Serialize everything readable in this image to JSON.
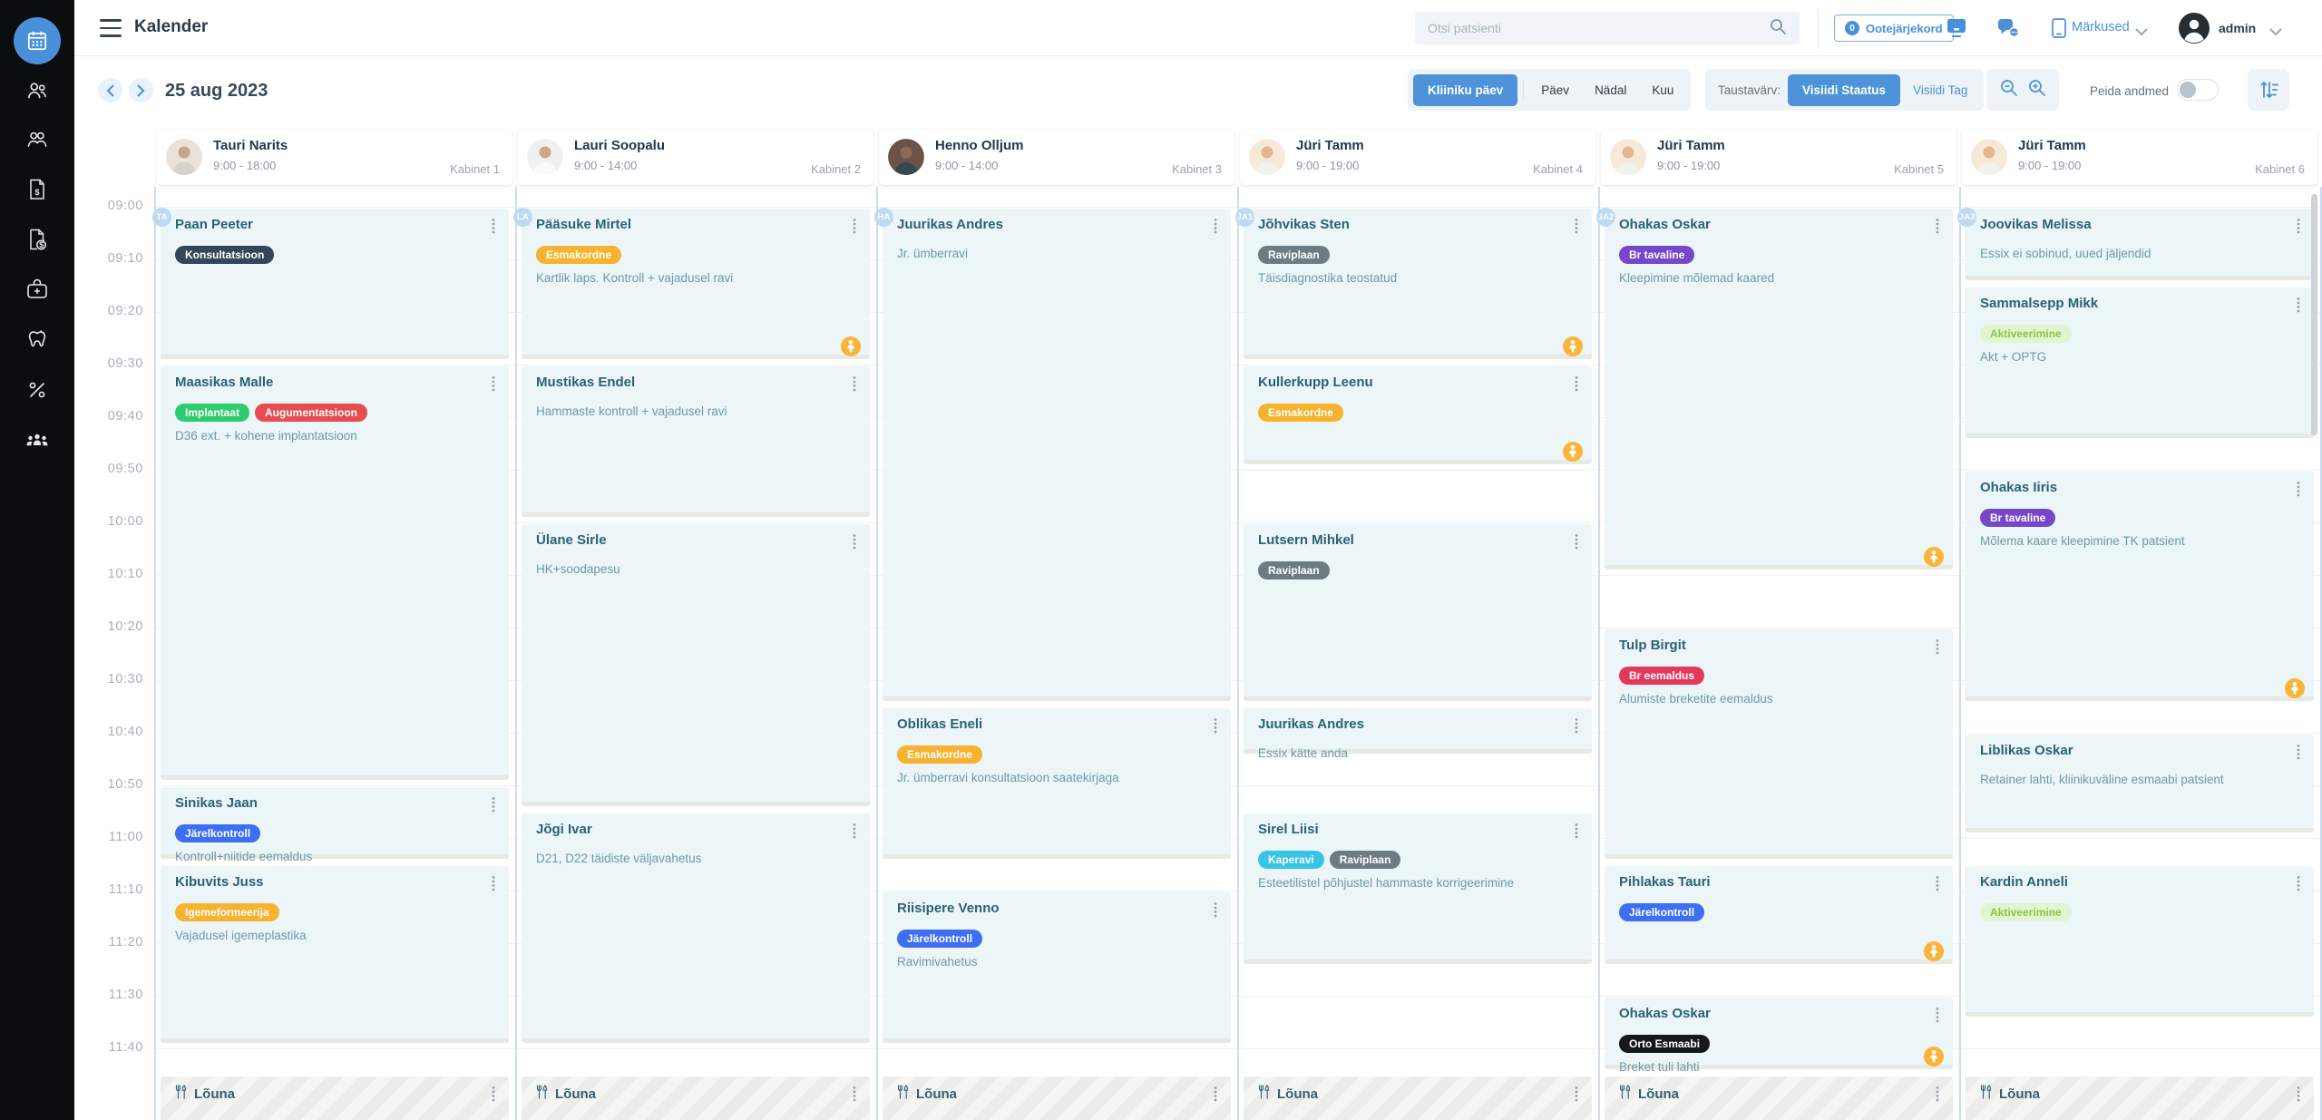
{
  "header": {
    "title": "Kalender",
    "search_placeholder": "Otsi patsienti",
    "queue_count": "0",
    "queue_label": "Ootejärjekord",
    "notes_label": "Märkused",
    "user": "admin"
  },
  "toolbar": {
    "date": "25 aug 2023",
    "views": [
      "Kliiniku päev",
      "Päev",
      "Nädal",
      "Kuu"
    ],
    "active_view": "Kliiniku päev",
    "background_label": "Taustavärv:",
    "background_options": [
      "Visiidi Staatus",
      "Visiidi Tag"
    ],
    "active_background": "Visiidi Staatus",
    "hide_data_label": "Peida andmed",
    "hide_data_on": false
  },
  "sidebar": {
    "items": [
      {
        "icon": "calendar",
        "active": true
      },
      {
        "icon": "patients",
        "active": false
      },
      {
        "icon": "contacts",
        "active": false
      },
      {
        "icon": "invoice",
        "active": false
      },
      {
        "icon": "billing",
        "active": false
      },
      {
        "icon": "medkit",
        "active": false
      },
      {
        "icon": "dental",
        "active": false
      },
      {
        "icon": "discount",
        "active": false
      },
      {
        "icon": "team",
        "active": false
      }
    ]
  },
  "calendar": {
    "times": [
      "09:00",
      "09:10",
      "09:20",
      "09:30",
      "09:40",
      "09:50",
      "10:00",
      "10:10",
      "10:20",
      "10:30",
      "10:40",
      "10:50",
      "11:00",
      "11:10",
      "11:20",
      "11:30",
      "11:40"
    ],
    "lunch": {
      "label": "Lõuna",
      "start": "11:45"
    },
    "accent_color": "#4a90d9",
    "tag_colors": {
      "Konsultatsioon": {
        "bg": "#33465a",
        "fg": "#ffffff"
      },
      "Implantaat": {
        "bg": "#2ecc71",
        "fg": "#ffffff"
      },
      "Augumentatsioon": {
        "bg": "#e74c50",
        "fg": "#ffffff"
      },
      "Järelkontroll": {
        "bg": "#3e6ef2",
        "fg": "#ffffff"
      },
      "Igemeformeerija": {
        "bg": "#f6b32f",
        "fg": "#ffffff"
      },
      "Esmakordne": {
        "bg": "#f6b32f",
        "fg": "#ffffff"
      },
      "Raviplaan": {
        "bg": "#6e7b83",
        "fg": "#ffffff"
      },
      "Kaperavi": {
        "bg": "#38c4e4",
        "fg": "#ffffff"
      },
      "Br tavaline": {
        "bg": "#7747c9",
        "fg": "#ffffff"
      },
      "Br eemaldus": {
        "bg": "#e23a5e",
        "fg": "#ffffff"
      },
      "Orto Esmaabi": {
        "bg": "#15191c",
        "fg": "#ffffff"
      },
      "Aktiveerimine": {
        "bg": "#e1f5d0",
        "fg": "#8bc34a"
      }
    },
    "columns": [
      {
        "doctor": "Tauri Narits",
        "hours": "9:00 - 18:00",
        "room": "Kabinet 1",
        "badge": "TA",
        "avatar": {
          "bg": "#e9e2d8",
          "head": "#caa287",
          "body": "#d8d3ca"
        },
        "appointments": [
          {
            "patient": "Paan Peeter",
            "tags": [
              "Konsultatsioon"
            ],
            "note": "",
            "start": "09:00",
            "end": "09:30",
            "child": false
          },
          {
            "patient": "Maasikas Malle",
            "tags": [
              "Implantaat",
              "Augumentatsioon"
            ],
            "note": "D36 ext. + kohene implantatsioon",
            "start": "09:30",
            "end": "10:50",
            "child": false
          },
          {
            "patient": "Sinikas Jaan",
            "tags": [
              "Järelkontroll"
            ],
            "note": "Kontroll+niitide eemaldus",
            "start": "10:50",
            "end": "11:05",
            "child": false
          },
          {
            "patient": "Kibuvits Juss",
            "tags": [
              "Igemeformeerija"
            ],
            "note": "Vajadusel igemeplastika",
            "start": "11:05",
            "end": "11:40",
            "child": false
          }
        ]
      },
      {
        "doctor": "Lauri Soopalu",
        "hours": "9:00 - 14:00",
        "room": "Kabinet 2",
        "badge": "LA",
        "avatar": {
          "bg": "#eef0f1",
          "head": "#d2a586",
          "body": "#fafafa"
        },
        "appointments": [
          {
            "patient": "Pääsuke Mirtel",
            "tags": [
              "Esmakordne"
            ],
            "note": "Kartlik laps. Kontroll + vajadusel ravi",
            "start": "09:00",
            "end": "09:30",
            "child": true
          },
          {
            "patient": "Mustikas Endel",
            "tags": [],
            "note": "Hammaste kontroll + vajadusel ravi",
            "start": "09:30",
            "end": "10:00",
            "child": false
          },
          {
            "patient": "Ülane Sirle",
            "tags": [],
            "note": "HK+soodapesu",
            "start": "10:00",
            "end": "10:55",
            "child": false
          },
          {
            "patient": "Jõgi Ivar",
            "tags": [],
            "note": "D21, D22 täidiste väljavahetus",
            "start": "10:55",
            "end": "11:40",
            "child": false
          }
        ]
      },
      {
        "doctor": "Henno Olljum",
        "hours": "9:00 - 14:00",
        "room": "Kabinet 3",
        "badge": "HA",
        "avatar": {
          "bg": "#6b5348",
          "head": "#8a6b57",
          "body": "#37474f"
        },
        "appointments": [
          {
            "patient": "Juurikas Andres",
            "tags": [],
            "note": "Jr. ümberravi",
            "start": "09:00",
            "end": "10:35",
            "child": false
          },
          {
            "patient": "Oblikas Eneli",
            "tags": [
              "Esmakordne"
            ],
            "note": "Jr. ümberravi konsultatsioon saatekirjaga",
            "start": "10:35",
            "end": "11:05",
            "child": false
          },
          {
            "patient": "Riisipere Venno",
            "tags": [
              "Järelkontroll"
            ],
            "note": "Ravimivahetus",
            "start": "11:10",
            "end": "11:40",
            "child": false
          }
        ]
      },
      {
        "doctor": "Jüri Tamm",
        "hours": "9:00 - 19:00",
        "room": "Kabinet 4",
        "badge": "JA1",
        "avatar": {
          "bg": "#f6e9d8",
          "head": "#e3b68f",
          "body": "#f2f2ef"
        },
        "appointments": [
          {
            "patient": "Jõhvikas Sten",
            "tags": [
              "Raviplaan"
            ],
            "note": "Täisdiagnostika teostatud",
            "start": "09:00",
            "end": "09:30",
            "child": true
          },
          {
            "patient": "Kullerkupp Leenu",
            "tags": [
              "Esmakordne"
            ],
            "note": "",
            "start": "09:30",
            "end": "09:50",
            "child": true
          },
          {
            "patient": "Lutsern Mihkel",
            "tags": [
              "Raviplaan"
            ],
            "note": "",
            "start": "10:00",
            "end": "10:35",
            "child": false
          },
          {
            "patient": "Juurikas Andres",
            "tags": [],
            "note": "Essix kätte anda",
            "start": "10:35",
            "end": "10:45",
            "child": false
          },
          {
            "patient": "Sirel Liisi",
            "tags": [
              "Kaperavi",
              "Raviplaan"
            ],
            "note": "Esteetilistel põhjustel hammaste korrigeerimine",
            "start": "10:55",
            "end": "11:25",
            "child": false
          }
        ]
      },
      {
        "doctor": "Jüri Tamm",
        "hours": "9:00 - 19:00",
        "room": "Kabinet 5",
        "badge": "JA2",
        "avatar": {
          "bg": "#f6e9d8",
          "head": "#e3b68f",
          "body": "#f2f2ef"
        },
        "appointments": [
          {
            "patient": "Ohakas Oskar",
            "tags": [
              "Br tavaline"
            ],
            "note": "Kleepimine mõlemad kaared",
            "start": "09:00",
            "end": "10:10",
            "child": true
          },
          {
            "patient": "Tulp Birgit",
            "tags": [
              "Br eemaldus"
            ],
            "note": "Alumiste breketite eemaldus",
            "start": "10:20",
            "end": "11:05",
            "child": false
          },
          {
            "patient": "Pihlakas Tauri",
            "tags": [
              "Järelkontroll"
            ],
            "note": "",
            "start": "11:05",
            "end": "11:25",
            "child": true
          },
          {
            "patient": "Ohakas Oskar",
            "tags": [
              "Orto Esmaabi"
            ],
            "note": "Breket tuli lahti",
            "start": "11:30",
            "end": "11:45",
            "child": true
          }
        ]
      },
      {
        "doctor": "Jüri Tamm",
        "hours": "9:00 - 19:00",
        "room": "Kabinet 6",
        "badge": "JA3",
        "avatar": {
          "bg": "#f6e9d8",
          "head": "#e3b68f",
          "body": "#f2f2ef"
        },
        "appointments": [
          {
            "patient": "Joovikas Melissa",
            "tags": [],
            "note": "Essix ei sobinud, uued jäljendid",
            "start": "09:00",
            "end": "09:15",
            "child": false
          },
          {
            "patient": "Sammalsepp Mikk",
            "tags": [
              "Aktiveerimine"
            ],
            "note": "Akt + OPTG",
            "start": "09:15",
            "end": "09:45",
            "child": false
          },
          {
            "patient": "Ohakas Iiris",
            "tags": [
              "Br tavaline"
            ],
            "note": "Mõlema kaare kleepimine TK patsient",
            "start": "09:50",
            "end": "10:35",
            "child": true
          },
          {
            "patient": "Liblikas Oskar",
            "tags": [],
            "note": "Retainer lahti, kliinikuväline esmaabi patsient",
            "start": "10:40",
            "end": "11:00",
            "child": false
          },
          {
            "patient": "Kardin Anneli",
            "tags": [
              "Aktiveerimine"
            ],
            "note": "",
            "start": "11:05",
            "end": "11:35",
            "child": false
          }
        ]
      }
    ]
  }
}
